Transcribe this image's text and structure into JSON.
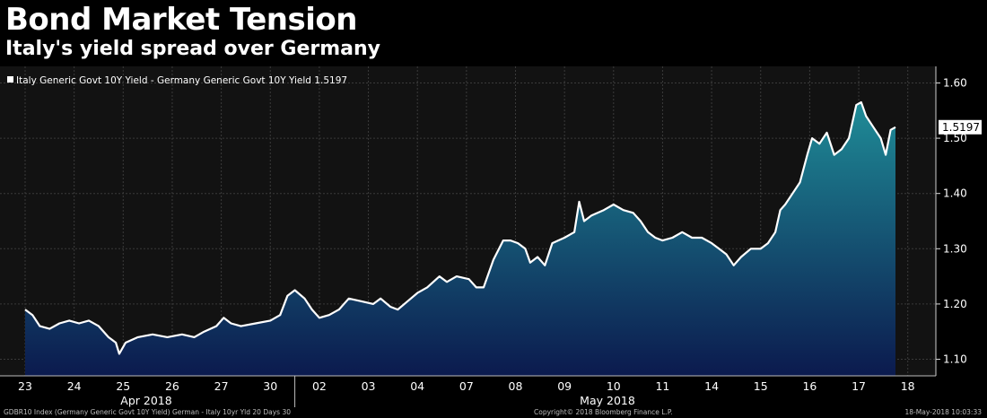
{
  "header": {
    "title": "Bond Market Tension",
    "subtitle": "Italy's yield spread over Germany"
  },
  "footer": {
    "left": "GDBR10 Index (Germany Generic Govt 10Y Yield) German - Italy 10yr Yld 20 Days 30",
    "center": "Copyright© 2018 Bloomberg Finance L.P.",
    "right": "18-May-2018 10:03:33"
  },
  "colors": {
    "background": "#000000",
    "plot_background": "#121212",
    "line": "#ffffff",
    "area_top": "#1f8c97",
    "area_bottom": "#0b1a4e",
    "grid": "#3a3a3a"
  },
  "chart_data": {
    "type": "area",
    "legend": {
      "label": "Italy Generic Govt 10Y Yield - Germany Generic Govt 10Y Yield 1.5197",
      "position": "top-left"
    },
    "last_value_label": "1.5197",
    "grid": true,
    "ylim": [
      1.07,
      1.63
    ],
    "yticks": [
      "1.10",
      "1.20",
      "1.30",
      "1.40",
      "1.50",
      "1.60"
    ],
    "xlim": [
      0,
      17.75
    ],
    "day_ticks": [
      "23",
      "24",
      "25",
      "26",
      "27",
      "30",
      "02",
      "03",
      "04",
      "07",
      "08",
      "09",
      "10",
      "11",
      "14",
      "15",
      "16",
      "17",
      "18"
    ],
    "month_labels": [
      "Apr 2018",
      "May 2018"
    ],
    "series": [
      {
        "values": [
          [
            0.0,
            1.19
          ],
          [
            0.15,
            1.18
          ],
          [
            0.3,
            1.16
          ],
          [
            0.5,
            1.155
          ],
          [
            0.7,
            1.165
          ],
          [
            0.9,
            1.17
          ],
          [
            1.1,
            1.165
          ],
          [
            1.3,
            1.17
          ],
          [
            1.5,
            1.16
          ],
          [
            1.7,
            1.14
          ],
          [
            1.85,
            1.13
          ],
          [
            1.92,
            1.11
          ],
          [
            2.05,
            1.13
          ],
          [
            2.3,
            1.14
          ],
          [
            2.6,
            1.145
          ],
          [
            2.9,
            1.14
          ],
          [
            3.2,
            1.145
          ],
          [
            3.45,
            1.14
          ],
          [
            3.65,
            1.15
          ],
          [
            3.9,
            1.16
          ],
          [
            4.05,
            1.175
          ],
          [
            4.2,
            1.165
          ],
          [
            4.4,
            1.16
          ],
          [
            4.7,
            1.165
          ],
          [
            5.0,
            1.17
          ],
          [
            5.2,
            1.18
          ],
          [
            5.35,
            1.215
          ],
          [
            5.5,
            1.225
          ],
          [
            5.7,
            1.21
          ],
          [
            5.85,
            1.19
          ],
          [
            6.0,
            1.175
          ],
          [
            6.2,
            1.18
          ],
          [
            6.4,
            1.19
          ],
          [
            6.6,
            1.21
          ],
          [
            6.85,
            1.205
          ],
          [
            7.1,
            1.2
          ],
          [
            7.25,
            1.21
          ],
          [
            7.45,
            1.195
          ],
          [
            7.6,
            1.19
          ],
          [
            7.8,
            1.205
          ],
          [
            8.0,
            1.22
          ],
          [
            8.2,
            1.23
          ],
          [
            8.45,
            1.25
          ],
          [
            8.6,
            1.24
          ],
          [
            8.8,
            1.25
          ],
          [
            9.05,
            1.245
          ],
          [
            9.2,
            1.23
          ],
          [
            9.35,
            1.23
          ],
          [
            9.55,
            1.28
          ],
          [
            9.75,
            1.315
          ],
          [
            9.9,
            1.315
          ],
          [
            10.05,
            1.31
          ],
          [
            10.2,
            1.3
          ],
          [
            10.3,
            1.275
          ],
          [
            10.45,
            1.285
          ],
          [
            10.6,
            1.27
          ],
          [
            10.75,
            1.31
          ],
          [
            11.0,
            1.32
          ],
          [
            11.2,
            1.33
          ],
          [
            11.3,
            1.385
          ],
          [
            11.4,
            1.35
          ],
          [
            11.55,
            1.36
          ],
          [
            11.8,
            1.37
          ],
          [
            12.0,
            1.38
          ],
          [
            12.2,
            1.37
          ],
          [
            12.4,
            1.365
          ],
          [
            12.55,
            1.35
          ],
          [
            12.7,
            1.33
          ],
          [
            12.85,
            1.32
          ],
          [
            13.0,
            1.315
          ],
          [
            13.2,
            1.32
          ],
          [
            13.4,
            1.33
          ],
          [
            13.6,
            1.32
          ],
          [
            13.8,
            1.32
          ],
          [
            14.0,
            1.31
          ],
          [
            14.15,
            1.3
          ],
          [
            14.3,
            1.29
          ],
          [
            14.45,
            1.27
          ],
          [
            14.6,
            1.285
          ],
          [
            14.8,
            1.3
          ],
          [
            15.0,
            1.3
          ],
          [
            15.15,
            1.31
          ],
          [
            15.3,
            1.33
          ],
          [
            15.4,
            1.37
          ],
          [
            15.5,
            1.38
          ],
          [
            15.65,
            1.4
          ],
          [
            15.8,
            1.42
          ],
          [
            15.95,
            1.47
          ],
          [
            16.05,
            1.5
          ],
          [
            16.2,
            1.49
          ],
          [
            16.35,
            1.51
          ],
          [
            16.5,
            1.47
          ],
          [
            16.65,
            1.48
          ],
          [
            16.8,
            1.5
          ],
          [
            16.95,
            1.56
          ],
          [
            17.05,
            1.565
          ],
          [
            17.15,
            1.54
          ],
          [
            17.3,
            1.52
          ],
          [
            17.45,
            1.5
          ],
          [
            17.55,
            1.47
          ],
          [
            17.65,
            1.515
          ],
          [
            17.75,
            1.52
          ]
        ]
      }
    ]
  }
}
